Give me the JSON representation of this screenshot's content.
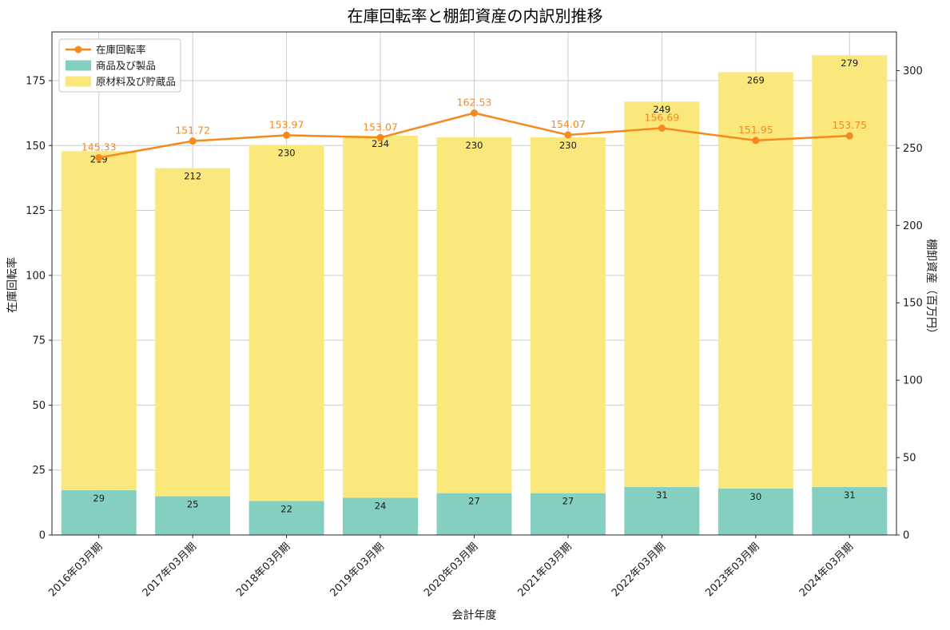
{
  "chart_data": {
    "type": "bar",
    "title": "在庫回転率と棚卸資産の内訳別推移",
    "xlabel": "会計年度",
    "ylabel_left": "在庫回転率",
    "ylabel_right": "棚卸資産（百万円）",
    "legend_position": "upper-left",
    "grid": true,
    "categories": [
      "2016年03月期",
      "2017年03月期",
      "2018年03月期",
      "2019年03月期",
      "2020年03月期",
      "2021年03月期",
      "2022年03月期",
      "2023年03月期",
      "2024年03月期"
    ],
    "series": [
      {
        "id": "turnover",
        "name": "在庫回転率",
        "type": "line",
        "axis": "left",
        "color": "#F5891E",
        "values": [
          145.33,
          151.72,
          153.97,
          153.07,
          162.53,
          154.07,
          156.69,
          151.95,
          153.75
        ]
      },
      {
        "id": "products",
        "name": "商品及び製品",
        "type": "bar",
        "axis": "right",
        "color": "#85CFC1",
        "values": [
          29,
          25,
          22,
          24,
          27,
          27,
          31,
          30,
          31
        ]
      },
      {
        "id": "materials",
        "name": "原材料及び貯蔵品",
        "type": "bar",
        "axis": "right",
        "color": "#FAE87C",
        "values": [
          219,
          212,
          230,
          234,
          230,
          230,
          249,
          269,
          279
        ]
      }
    ],
    "axes": {
      "left": {
        "min": 0,
        "max": 193.75,
        "ticks": [
          0,
          25,
          50,
          75,
          100,
          125,
          150,
          175
        ]
      },
      "right": {
        "min": 0,
        "max": 325,
        "ticks": [
          0,
          50,
          100,
          150,
          200,
          250,
          300
        ]
      }
    },
    "style": {
      "grid_color": "#CCCCCC",
      "spine_color": "#262626",
      "text_color": "#1A1A1A",
      "background": "#FFFFFF"
    }
  }
}
